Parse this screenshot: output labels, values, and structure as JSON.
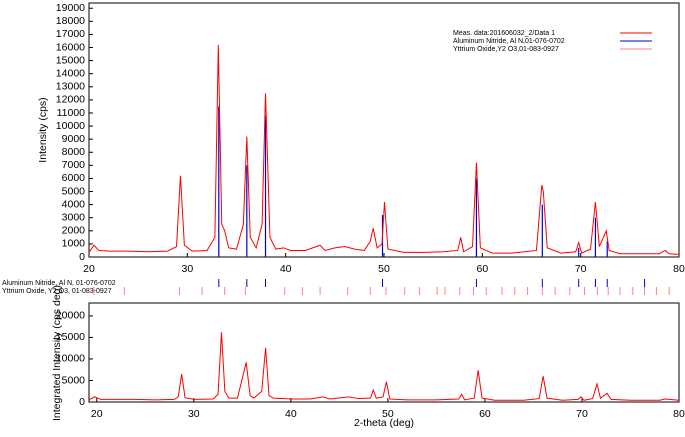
{
  "chart_data": [
    {
      "type": "line",
      "ylabel": "Intensity (cps)",
      "xlim": [
        20,
        80
      ],
      "ylim": [
        0,
        19400
      ],
      "xticks": [
        20,
        30,
        40,
        50,
        60,
        70,
        80
      ],
      "yticks": [
        0,
        1000,
        2000,
        3000,
        4000,
        5000,
        6000,
        7000,
        8000,
        9000,
        10000,
        11000,
        12000,
        13000,
        14000,
        15000,
        16000,
        17000,
        18000,
        19000
      ],
      "legend": "upper right",
      "series": [
        {
          "name": "Meas. data:201606032_2/Data 1",
          "color": "#ff0000",
          "kind": "line",
          "x": [
            20,
            20.5,
            21,
            22,
            24,
            26,
            28,
            28.9,
            29.3,
            29.7,
            30.5,
            32,
            32.8,
            33.15,
            33.5,
            33.8,
            34.2,
            35,
            35.7,
            36.05,
            36.4,
            37,
            37.6,
            37.95,
            38.4,
            39,
            39.8,
            40.5,
            42,
            43.5,
            44,
            45,
            46,
            47,
            48,
            48.6,
            48.9,
            49.3,
            49.8,
            50.05,
            50.4,
            52,
            54,
            56,
            57.5,
            57.8,
            58.1,
            59,
            59.4,
            59.8,
            61,
            63,
            65.5,
            66.05,
            66.2,
            66.6,
            68,
            69.5,
            69.8,
            70.1,
            71,
            71.5,
            71.9,
            72.6,
            72.9,
            74,
            76,
            78,
            78.6,
            79,
            80
          ],
          "values": [
            350,
            900,
            500,
            450,
            450,
            400,
            450,
            800,
            6200,
            900,
            450,
            500,
            1500,
            16200,
            2500,
            2000,
            700,
            600,
            2500,
            9200,
            1500,
            700,
            2500,
            12500,
            1500,
            600,
            700,
            500,
            500,
            900,
            500,
            700,
            800,
            600,
            500,
            1200,
            2200,
            700,
            1000,
            4200,
            600,
            350,
            350,
            400,
            500,
            1500,
            400,
            800,
            7200,
            700,
            300,
            300,
            500,
            5500,
            5000,
            700,
            300,
            400,
            1100,
            300,
            600,
            4200,
            800,
            2000,
            500,
            250,
            250,
            250,
            500,
            250,
            200
          ]
        },
        {
          "name": "Aluminum Nitride, Al N,01-076-0702",
          "color": "#0000cc",
          "kind": "stick",
          "x": [
            33.2,
            36.05,
            37.95,
            49.85,
            59.4,
            66.1,
            69.8,
            71.5,
            72.7
          ],
          "values": [
            11500,
            7000,
            10800,
            3200,
            6000,
            4000,
            700,
            3000,
            1200
          ]
        },
        {
          "name": "Yttrium Oxide,Y2 O3,01-083-0927",
          "color": "#ff8080",
          "kind": "stick"
        }
      ]
    },
    {
      "type": "stick-rows",
      "rows": [
        {
          "label": "Aluminum Nitride, Al N, 01-076-0702",
          "color": "#0000cc",
          "x": [
            33.2,
            36.05,
            37.95,
            49.85,
            59.4,
            66.1,
            69.8,
            71.5,
            72.7,
            76.5
          ]
        },
        {
          "label": "Yttrium Oxide, Y2 O3, 01-083-0927",
          "color": "#ff8080",
          "x": [
            20.5,
            23.6,
            29.2,
            31.5,
            33.8,
            35.9,
            39.9,
            41.7,
            43.5,
            46.3,
            48.6,
            50.2,
            52.1,
            53.6,
            55.4,
            56.2,
            57.7,
            59.1,
            60.4,
            62.0,
            63.3,
            64.6,
            66.1,
            67.4,
            68.9,
            70.4,
            71.7,
            72.8,
            74.0,
            75.3,
            76.5,
            77.7,
            79.0
          ]
        }
      ]
    },
    {
      "type": "line",
      "ylabel": "Integrated Intensity (cps deg)",
      "xlabel": "2-theta (deg)",
      "xlim": [
        19.2,
        80
      ],
      "ylim": [
        0,
        23000
      ],
      "xticks": [
        20,
        30,
        40,
        50,
        60,
        70,
        80
      ],
      "yticks": [
        0,
        5000,
        10000,
        15000,
        20000
      ],
      "series": [
        {
          "name": "Integrated",
          "color": "#ff0000",
          "kind": "line",
          "x": [
            19.2,
            19.8,
            20.4,
            22,
            24,
            26,
            28,
            28.4,
            28.75,
            29.1,
            30,
            32,
            32.5,
            32.85,
            33.2,
            33.6,
            34.5,
            35.4,
            35.8,
            36.2,
            37,
            37.4,
            37.75,
            38.2,
            39,
            40,
            42,
            43.3,
            44,
            46,
            47,
            48.2,
            48.5,
            48.8,
            49.5,
            49.85,
            50.2,
            52,
            55,
            57.3,
            57.6,
            57.9,
            58.9,
            59.3,
            59.7,
            61,
            64,
            65.6,
            66.0,
            66.4,
            68,
            69.6,
            69.9,
            70.2,
            71.1,
            71.55,
            71.9,
            72.6,
            73,
            75,
            78,
            78.6,
            80
          ],
          "values": [
            500,
            1200,
            600,
            600,
            600,
            500,
            600,
            1200,
            6500,
            1000,
            600,
            700,
            1800,
            16200,
            2500,
            900,
            900,
            9200,
            1500,
            900,
            2500,
            12600,
            1500,
            900,
            800,
            700,
            700,
            1200,
            700,
            1200,
            800,
            900,
            2800,
            900,
            1200,
            4700,
            700,
            500,
            500,
            700,
            1800,
            500,
            900,
            7400,
            900,
            400,
            400,
            800,
            6000,
            900,
            400,
            600,
            1200,
            400,
            800,
            4200,
            900,
            2000,
            600,
            400,
            400,
            700,
            400
          ]
        }
      ]
    }
  ]
}
